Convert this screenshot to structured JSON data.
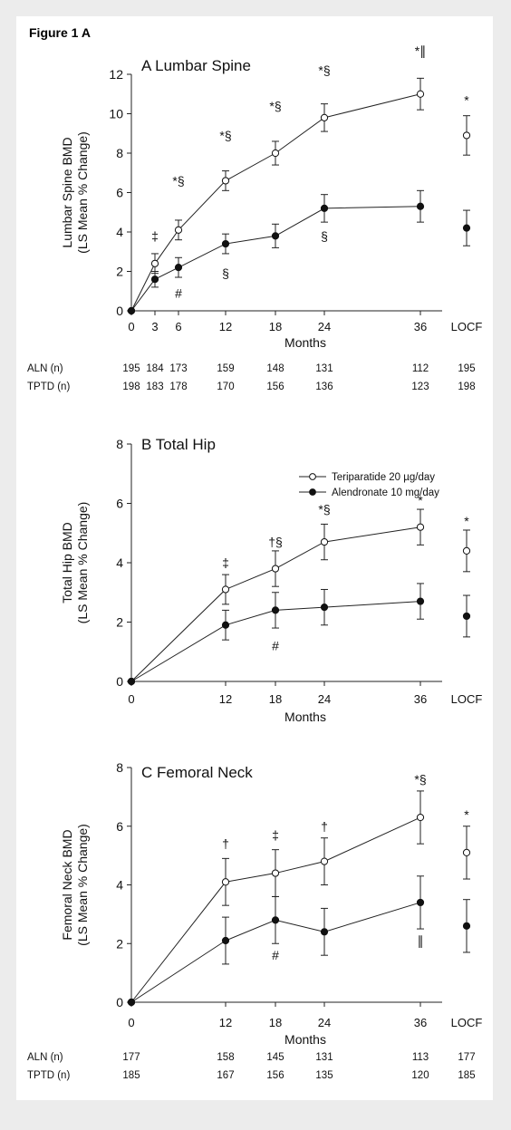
{
  "figure_title": "Figure 1 A",
  "chart_data": [
    {
      "type": "line",
      "title": "A  Lumbar Spine",
      "ylabel": [
        "Lumbar Spine BMD",
        "(LS Mean % Change)"
      ],
      "xlabel": "Months",
      "ylim": [
        0,
        12
      ],
      "yticks": [
        "0",
        "2",
        "4",
        "6",
        "8",
        "10",
        "12"
      ],
      "xticks": [
        "0",
        "3",
        "6",
        "12",
        "18",
        "24",
        "36",
        "LOCF"
      ],
      "series": [
        {
          "name": "Teriparatide 20 µg/day",
          "marker": "open",
          "x": [
            0,
            3,
            6,
            12,
            18,
            24,
            36
          ],
          "values": [
            0,
            2.4,
            4.1,
            6.6,
            8.0,
            9.8,
            11.0
          ],
          "err": [
            0,
            0.5,
            0.5,
            0.5,
            0.6,
            0.7,
            0.8
          ],
          "locf": 8.9,
          "locf_err": 1.0
        },
        {
          "name": "Alendronate 10 mg/day",
          "marker": "filled",
          "x": [
            0,
            3,
            6,
            12,
            18,
            24,
            36
          ],
          "values": [
            0,
            1.6,
            2.2,
            3.4,
            3.8,
            5.2,
            5.3
          ],
          "err": [
            0,
            0.4,
            0.5,
            0.5,
            0.6,
            0.7,
            0.8
          ],
          "locf": 4.2,
          "locf_err": 0.9
        }
      ],
      "annotations": [
        {
          "x": 3,
          "y": 3.8,
          "text": "‡"
        },
        {
          "x": 6,
          "y": 6.6,
          "text": "*§"
        },
        {
          "x": 6,
          "y": 0.9,
          "text": "#"
        },
        {
          "x": 12,
          "y": 8.9,
          "text": "*§"
        },
        {
          "x": 12,
          "y": 1.9,
          "text": "§"
        },
        {
          "x": 18,
          "y": 10.4,
          "text": "*§"
        },
        {
          "x": 24,
          "y": 12.2,
          "text": "*§"
        },
        {
          "x": 24,
          "y": 3.8,
          "text": "§"
        },
        {
          "x": 36,
          "y": 13.2,
          "text": "*∥"
        },
        {
          "x": "LOCF",
          "y": 10.7,
          "text": "*"
        }
      ],
      "n_table": [
        {
          "label": "ALN (n)",
          "values": [
            "195",
            "184",
            "173",
            "159",
            "148",
            "131",
            "112",
            "195"
          ]
        },
        {
          "label": "TPTD (n)",
          "values": [
            "198",
            "183",
            "178",
            "170",
            "156",
            "136",
            "123",
            "198"
          ]
        }
      ]
    },
    {
      "type": "line",
      "title": "B  Total Hip",
      "ylabel": [
        "Total Hip BMD",
        "(LS Mean % Change)"
      ],
      "xlabel": "Months",
      "ylim": [
        0,
        8
      ],
      "yticks": [
        "0",
        "2",
        "4",
        "6",
        "8"
      ],
      "xticks": [
        "0",
        "12",
        "18",
        "24",
        "36",
        "LOCF"
      ],
      "legend": {
        "placement": "top-right",
        "entries": [
          "Teriparatide 20 µg/day",
          "Alendronate 10 mg/day"
        ]
      },
      "series": [
        {
          "name": "Teriparatide 20 µg/day",
          "marker": "open",
          "x": [
            0,
            12,
            18,
            24,
            36
          ],
          "values": [
            0,
            3.1,
            3.8,
            4.7,
            5.2
          ],
          "err": [
            0,
            0.5,
            0.6,
            0.6,
            0.6
          ],
          "locf": 4.4,
          "locf_err": 0.7
        },
        {
          "name": "Alendronate 10 mg/day",
          "marker": "filled",
          "x": [
            0,
            12,
            18,
            24,
            36
          ],
          "values": [
            0,
            1.9,
            2.4,
            2.5,
            2.7
          ],
          "err": [
            0,
            0.5,
            0.6,
            0.6,
            0.6
          ],
          "locf": 2.2,
          "locf_err": 0.7
        }
      ],
      "annotations": [
        {
          "x": 12,
          "y": 4.0,
          "text": "‡"
        },
        {
          "x": 18,
          "y": 4.7,
          "text": "†§"
        },
        {
          "x": 18,
          "y": 1.2,
          "text": "#"
        },
        {
          "x": 24,
          "y": 5.8,
          "text": "*§"
        },
        {
          "x": "36",
          "y": 6.1,
          "text": "*"
        },
        {
          "x": "LOCF",
          "y": 5.4,
          "text": "*"
        }
      ]
    },
    {
      "type": "line",
      "title": "C  Femoral Neck",
      "ylabel": [
        "Femoral Neck BMD",
        "(LS Mean % Change)"
      ],
      "xlabel": "Months",
      "ylim": [
        0,
        8
      ],
      "yticks": [
        "0",
        "2",
        "4",
        "6",
        "8"
      ],
      "xticks": [
        "0",
        "12",
        "18",
        "24",
        "36",
        "LOCF"
      ],
      "series": [
        {
          "name": "Teriparatide 20 µg/day",
          "marker": "open",
          "x": [
            0,
            12,
            18,
            24,
            36
          ],
          "values": [
            0,
            4.1,
            4.4,
            4.8,
            6.3
          ],
          "err": [
            0,
            0.8,
            0.8,
            0.8,
            0.9
          ],
          "locf": 5.1,
          "locf_err": 0.9
        },
        {
          "name": "Alendronate 10 mg/day",
          "marker": "filled",
          "x": [
            0,
            12,
            18,
            24,
            36
          ],
          "values": [
            0,
            2.1,
            2.8,
            2.4,
            3.4
          ],
          "err": [
            0,
            0.8,
            0.8,
            0.8,
            0.9
          ],
          "locf": 2.6,
          "locf_err": 0.9
        }
      ],
      "annotations": [
        {
          "x": 12,
          "y": 5.4,
          "text": "†"
        },
        {
          "x": 18,
          "y": 5.7,
          "text": "‡"
        },
        {
          "x": 24,
          "y": 6.0,
          "text": "†"
        },
        {
          "x": 36,
          "y": 7.6,
          "text": "*§"
        },
        {
          "x": 36,
          "y": 2.1,
          "text": "∥"
        },
        {
          "x": 18,
          "y": 1.6,
          "text": "#"
        },
        {
          "x": "LOCF",
          "y": 6.4,
          "text": "*"
        }
      ],
      "n_table": [
        {
          "label": "ALN (n)",
          "values": [
            "177",
            "158",
            "145",
            "131",
            "113",
            "177"
          ]
        },
        {
          "label": "TPTD (n)",
          "values": [
            "185",
            "167",
            "156",
            "135",
            "120",
            "185"
          ]
        }
      ]
    }
  ]
}
